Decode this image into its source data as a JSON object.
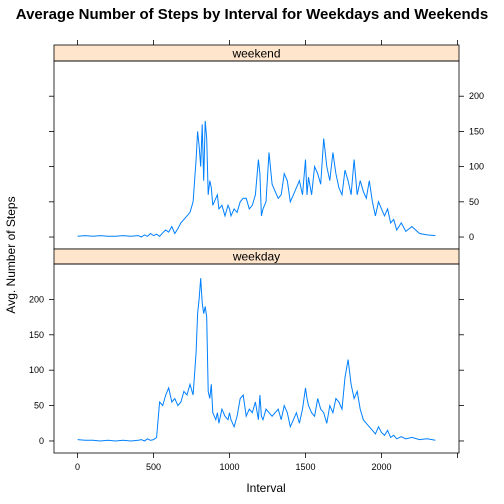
{
  "chart_data": {
    "type": "line",
    "title": "Average Number of Steps by Interval for Weekdays and Weekends",
    "xlabel": "Interval",
    "ylabel": "Avg. Number of Steps",
    "xlim": [
      -155,
      2510
    ],
    "ylim": [
      -17,
      250
    ],
    "x_ticks": [
      0,
      500,
      1000,
      1500,
      2000
    ],
    "y_ticks": [
      0,
      50,
      100,
      150,
      200
    ],
    "line_color": "#0080ff",
    "strip_color": "#ffe5cc",
    "grid": false,
    "legend": "none",
    "panels": [
      {
        "name": "weekend",
        "series": [
          {
            "x": [
              0,
              50,
              100,
              150,
              200,
              250,
              300,
              350,
              400,
              420,
              440,
              460,
              480,
              500,
              520,
              540,
              560,
              580,
              600,
              620,
              640,
              660,
              680,
              700,
              720,
              740,
              760,
              780,
              790,
              800,
              810,
              820,
              830,
              840,
              850,
              860,
              870,
              880,
              890,
              900,
              910,
              920,
              930,
              950,
              970,
              990,
              1000,
              1010,
              1030,
              1050,
              1070,
              1090,
              1110,
              1130,
              1150,
              1170,
              1190,
              1200,
              1210,
              1220,
              1240,
              1260,
              1280,
              1300,
              1320,
              1340,
              1360,
              1380,
              1400,
              1420,
              1440,
              1460,
              1480,
              1500,
              1510,
              1520,
              1540,
              1560,
              1580,
              1600,
              1620,
              1640,
              1660,
              1680,
              1700,
              1720,
              1740,
              1760,
              1780,
              1800,
              1820,
              1840,
              1860,
              1880,
              1900,
              1920,
              1940,
              1960,
              1980,
              2000,
              2020,
              2040,
              2060,
              2080,
              2100,
              2130,
              2160,
              2200,
              2250,
              2300,
              2355
            ],
            "y": [
              1,
              2,
              1,
              2,
              1,
              1,
              2,
              1,
              2,
              0,
              3,
              1,
              5,
              2,
              4,
              1,
              6,
              10,
              7,
              15,
              5,
              12,
              20,
              25,
              30,
              35,
              50,
              110,
              150,
              130,
              100,
              160,
              80,
              165,
              140,
              60,
              80,
              70,
              45,
              50,
              55,
              60,
              40,
              45,
              30,
              45,
              40,
              30,
              40,
              35,
              50,
              55,
              55,
              40,
              45,
              60,
              110,
              90,
              30,
              40,
              50,
              120,
              75,
              65,
              55,
              60,
              90,
              80,
              50,
              60,
              70,
              80,
              60,
              110,
              60,
              85,
              60,
              100,
              90,
              75,
              140,
              100,
              80,
              120,
              90,
              70,
              60,
              95,
              80,
              60,
              110,
              60,
              80,
              65,
              55,
              80,
              50,
              30,
              50,
              40,
              30,
              40,
              20,
              25,
              10,
              20,
              8,
              15,
              5,
              3,
              2
            ]
          }
        ]
      },
      {
        "name": "weekday",
        "series": [
          {
            "x": [
              0,
              50,
              100,
              150,
              200,
              250,
              300,
              350,
              400,
              420,
              440,
              460,
              480,
              500,
              520,
              540,
              560,
              580,
              600,
              620,
              640,
              660,
              680,
              700,
              720,
              740,
              760,
              780,
              790,
              800,
              810,
              820,
              830,
              840,
              850,
              860,
              870,
              880,
              890,
              900,
              910,
              920,
              930,
              950,
              970,
              990,
              1000,
              1010,
              1030,
              1050,
              1070,
              1090,
              1110,
              1130,
              1150,
              1170,
              1190,
              1200,
              1210,
              1220,
              1240,
              1260,
              1280,
              1300,
              1320,
              1340,
              1360,
              1380,
              1400,
              1420,
              1440,
              1460,
              1480,
              1500,
              1510,
              1520,
              1540,
              1560,
              1580,
              1600,
              1620,
              1640,
              1660,
              1680,
              1700,
              1720,
              1740,
              1760,
              1780,
              1800,
              1820,
              1840,
              1860,
              1880,
              1900,
              1920,
              1940,
              1960,
              1980,
              2000,
              2020,
              2040,
              2060,
              2080,
              2100,
              2130,
              2160,
              2200,
              2250,
              2300,
              2355
            ],
            "y": [
              2,
              1,
              1,
              0,
              1,
              0,
              1,
              0,
              1,
              2,
              0,
              3,
              1,
              2,
              5,
              55,
              50,
              65,
              75,
              55,
              60,
              50,
              55,
              70,
              65,
              80,
              65,
              125,
              180,
              200,
              230,
              195,
              180,
              190,
              175,
              70,
              60,
              80,
              40,
              35,
              30,
              40,
              25,
              45,
              35,
              30,
              40,
              30,
              20,
              35,
              60,
              65,
              35,
              45,
              40,
              55,
              30,
              65,
              35,
              30,
              45,
              40,
              35,
              40,
              45,
              30,
              50,
              40,
              20,
              30,
              40,
              25,
              45,
              75,
              60,
              50,
              40,
              35,
              60,
              45,
              40,
              25,
              50,
              40,
              60,
              55,
              45,
              90,
              115,
              80,
              60,
              70,
              45,
              30,
              25,
              20,
              15,
              10,
              20,
              12,
              8,
              15,
              5,
              8,
              3,
              6,
              3,
              5,
              2,
              3,
              1
            ]
          }
        ]
      }
    ]
  }
}
